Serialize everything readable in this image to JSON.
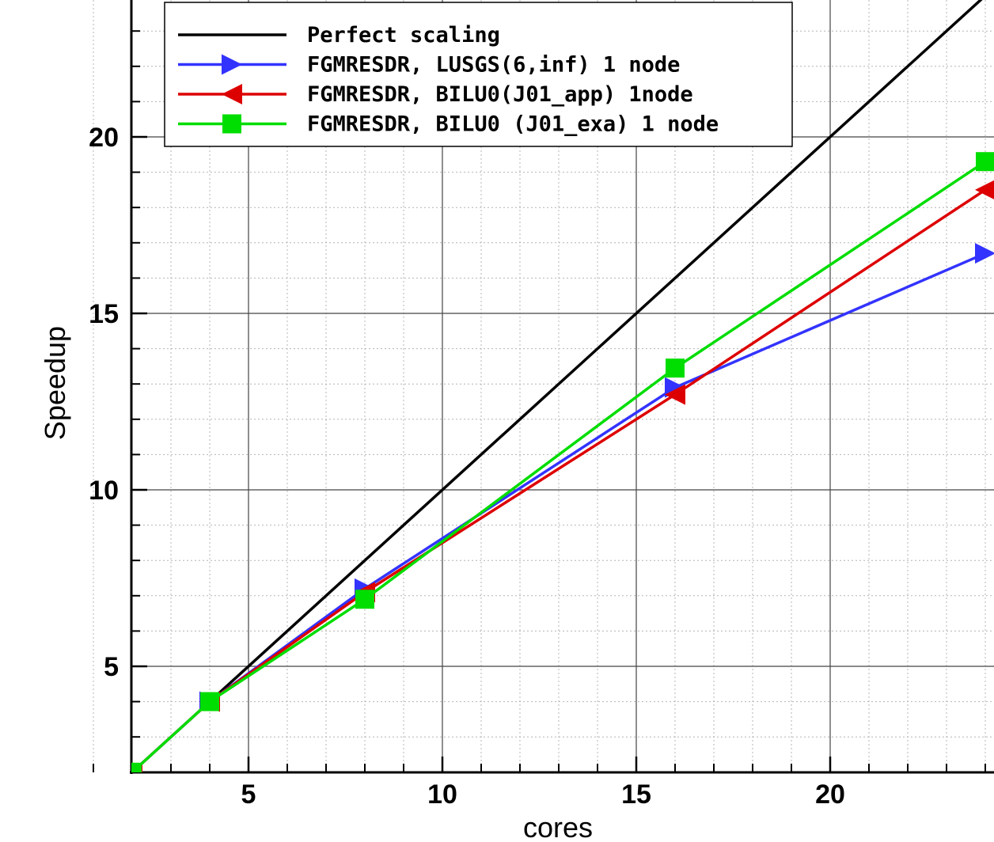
{
  "chart_data": {
    "type": "line",
    "title": "",
    "xlabel": "cores",
    "ylabel": "Speedup",
    "xlim": [
      1,
      24
    ],
    "ylim": [
      2,
      24
    ],
    "x_ticks": [
      5,
      10,
      15,
      20
    ],
    "y_ticks": [
      5,
      10,
      15,
      20
    ],
    "grid": true,
    "minor_grid": true,
    "legend_position": "top-left",
    "series": [
      {
        "name": "Perfect scaling",
        "color": "#000000",
        "marker": "none",
        "x": [
          4,
          24
        ],
        "y": [
          4,
          24
        ]
      },
      {
        "name": "FGMRESDR, LUSGS(6,inf) 1 node",
        "color": "#3333ff",
        "marker": "triangle-right",
        "x": [
          2,
          4,
          8,
          16,
          24
        ],
        "y": [
          2,
          4,
          7.2,
          12.9,
          16.7
        ]
      },
      {
        "name": "FGMRESDR, BILU0(J01_app) 1node",
        "color": "#dd0000",
        "marker": "triangle-left",
        "x": [
          2,
          4,
          8,
          16,
          24
        ],
        "y": [
          2,
          4,
          7.1,
          12.7,
          18.5
        ]
      },
      {
        "name": "FGMRESDR, BILU0 (J01_exa) 1 node",
        "color": "#00dd00",
        "marker": "square",
        "x": [
          2,
          4,
          8,
          16,
          24
        ],
        "y": [
          2,
          4,
          6.9,
          13.45,
          19.3
        ]
      }
    ]
  }
}
